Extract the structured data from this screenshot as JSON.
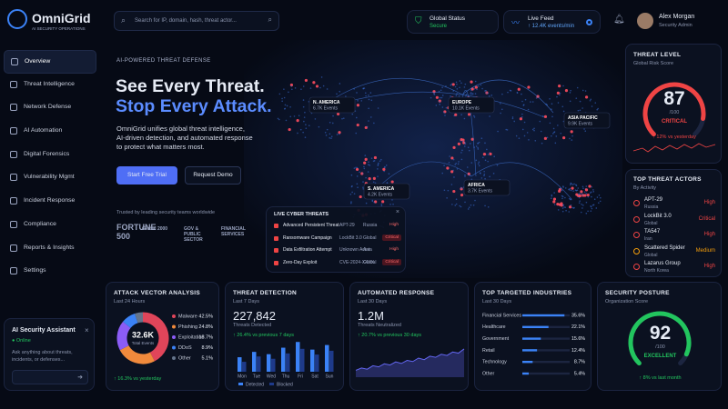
{
  "brand": {
    "name": "OmniGrid",
    "tagline": "AI SECURITY OPERATIONS"
  },
  "search": {
    "placeholder": "Search for IP, domain, hash, threat actor..."
  },
  "status": {
    "label": "Global Status",
    "value": "Secure"
  },
  "live_feed": {
    "label": "Live Feed",
    "value": "↑ 12.4K events/min"
  },
  "user": {
    "name": "Alex Morgan",
    "role": "Security Admin"
  },
  "nav": {
    "active": 0,
    "items": [
      "Overview",
      "Threat Intelligence",
      "Network Defense",
      "AI Automation",
      "Digital Forensics",
      "Vulnerability Mgmt",
      "Incident Response",
      "Compliance",
      "Reports & Insights",
      "Settings"
    ]
  },
  "assistant": {
    "title": "AI Security Assistant",
    "status": "Online",
    "placeholder": "Ask anything about threats, incidents, or defenses..."
  },
  "hero": {
    "eyebrow": "AI-POWERED THREAT DEFENSE",
    "title_line1": "See Every Threat.",
    "title_line2": "Stop Every Attack.",
    "body": "OmniGrid unifies global threat intelligence, AI-driven detection, and automated response to protect what matters most.",
    "primary_button": "Start Free Trial",
    "secondary_button": "Request Demo",
    "trusted": "Trusted by leading security teams worldwide",
    "logos": [
      "FORTUNE 500",
      "Global 2000",
      "GOV & PUBLIC SECTOR",
      "FINANCIAL SERVICES"
    ]
  },
  "map": {
    "regions": [
      {
        "name": "N. AMERICA",
        "events": "6.7K Events"
      },
      {
        "name": "EUROPE",
        "events": "10.1K Events"
      },
      {
        "name": "ASIA PACIFIC",
        "events": "9.9K Events"
      },
      {
        "name": "S. AMERICA",
        "events": "4.2K Events"
      },
      {
        "name": "AFRICA",
        "events": "3.7K Events"
      }
    ]
  },
  "live_threats": {
    "title": "LIVE CYBER THREATS",
    "rows": [
      [
        "Advanced Persistent Threat",
        "APT-29",
        "Russia",
        "High"
      ],
      [
        "Ransomware Campaign",
        "LockBit 3.0",
        "Global",
        "Critical"
      ],
      [
        "Data Exfiltration Attempt",
        "Unknown Actor",
        "Asia",
        "High"
      ],
      [
        "Zero-Day Exploit",
        "CVE-2024-XXXX",
        "Global",
        "Critical"
      ]
    ]
  },
  "threat_level": {
    "title": "THREAT LEVEL",
    "subtitle": "Global Risk Score",
    "value": 87,
    "max": {
      "value": 100,
      "label": "/100"
    },
    "status": "CRITICAL",
    "change": "↑ 12% vs yesterday",
    "color": "#ef4444"
  },
  "top_actors": {
    "title": "TOP THREAT ACTORS",
    "subtitle": "By Activity",
    "rows": [
      {
        "name": "APT-29",
        "origin": "Russia",
        "level": "High",
        "color": "#ef4444"
      },
      {
        "name": "LockBit 3.0",
        "origin": "Global",
        "level": "Critical",
        "color": "#ef4444"
      },
      {
        "name": "TA547",
        "origin": "Iran",
        "level": "High",
        "color": "#ef4444"
      },
      {
        "name": "Scattered Spider",
        "origin": "Global",
        "level": "Medium",
        "color": "#f59e0b"
      },
      {
        "name": "Lazarus Group",
        "origin": "North Korea",
        "level": "High",
        "color": "#ef4444"
      }
    ]
  },
  "attack_vector": {
    "title": "ATTACK VECTOR ANALYSIS",
    "subtitle": "Last 24 Hours",
    "total": "32.6K",
    "total_label": "Total Events",
    "change": "↑ 16.3% vs yesterday",
    "slices": [
      {
        "name": "Malware",
        "value": 42.5,
        "label": "42.5%",
        "color": "#e0455a"
      },
      {
        "name": "Phishing",
        "value": 24.8,
        "label": "24.8%",
        "color": "#f08a3c"
      },
      {
        "name": "Exploitation",
        "value": 18.7,
        "label": "18.7%",
        "color": "#8b5cf6"
      },
      {
        "name": "DDoS",
        "value": 8.9,
        "label": "8.9%",
        "color": "#3b82f6"
      },
      {
        "name": "Other",
        "value": 5.1,
        "label": "5.1%",
        "color": "#64748b"
      }
    ]
  },
  "threat_detection": {
    "title": "THREAT DETECTION",
    "subtitle": "Last 7 Days",
    "value": "227,842",
    "value_label": "Threats Detected",
    "change": "↑ 26.4% vs previous 7 days",
    "days": [
      "Mon",
      "Tue",
      "Wed",
      "Thu",
      "Fri",
      "Sat",
      "Sun"
    ],
    "ylim": [
      0,
      100
    ],
    "series": [
      {
        "name": "Detected",
        "color": "#3b82f6",
        "values": [
          38,
          52,
          46,
          63,
          78,
          58,
          70
        ]
      },
      {
        "name": "Blocked",
        "color": "#1e3a8a",
        "values": [
          26,
          40,
          34,
          48,
          60,
          45,
          55
        ]
      }
    ]
  },
  "automated_response": {
    "title": "AUTOMATED RESPONSE",
    "subtitle": "Last 30 Days",
    "value": "1.2M",
    "value_label": "Threats Neutralized",
    "change": "↑ 20.7% vs previous 30 days",
    "ylim": [
      0,
      100
    ],
    "color": "#6366f1",
    "trend": [
      18,
      24,
      21,
      30,
      27,
      35,
      32,
      40,
      36,
      44,
      41,
      50,
      46,
      55,
      52,
      60,
      57,
      66,
      63,
      74
    ]
  },
  "industries": {
    "title": "TOP TARGETED INDUSTRIES",
    "subtitle": "Last 30 Days",
    "xlim": [
      0,
      40
    ],
    "color": "#3b82f6",
    "rows": [
      {
        "name": "Financial Services",
        "value": 35.6,
        "label": "35.6%"
      },
      {
        "name": "Healthcare",
        "value": 22.1,
        "label": "22.1%"
      },
      {
        "name": "Government",
        "value": 15.6,
        "label": "15.6%"
      },
      {
        "name": "Retail",
        "value": 12.4,
        "label": "12.4%"
      },
      {
        "name": "Technology",
        "value": 8.7,
        "label": "8.7%"
      },
      {
        "name": "Other",
        "value": 5.4,
        "label": "5.4%"
      }
    ]
  },
  "posture": {
    "title": "SECURITY POSTURE",
    "subtitle": "Organization Score",
    "value": 92,
    "max": {
      "value": 100,
      "label": "/100"
    },
    "status": "EXCELLENT",
    "change": "↑ 8% vs last month",
    "color": "#22c55e"
  }
}
